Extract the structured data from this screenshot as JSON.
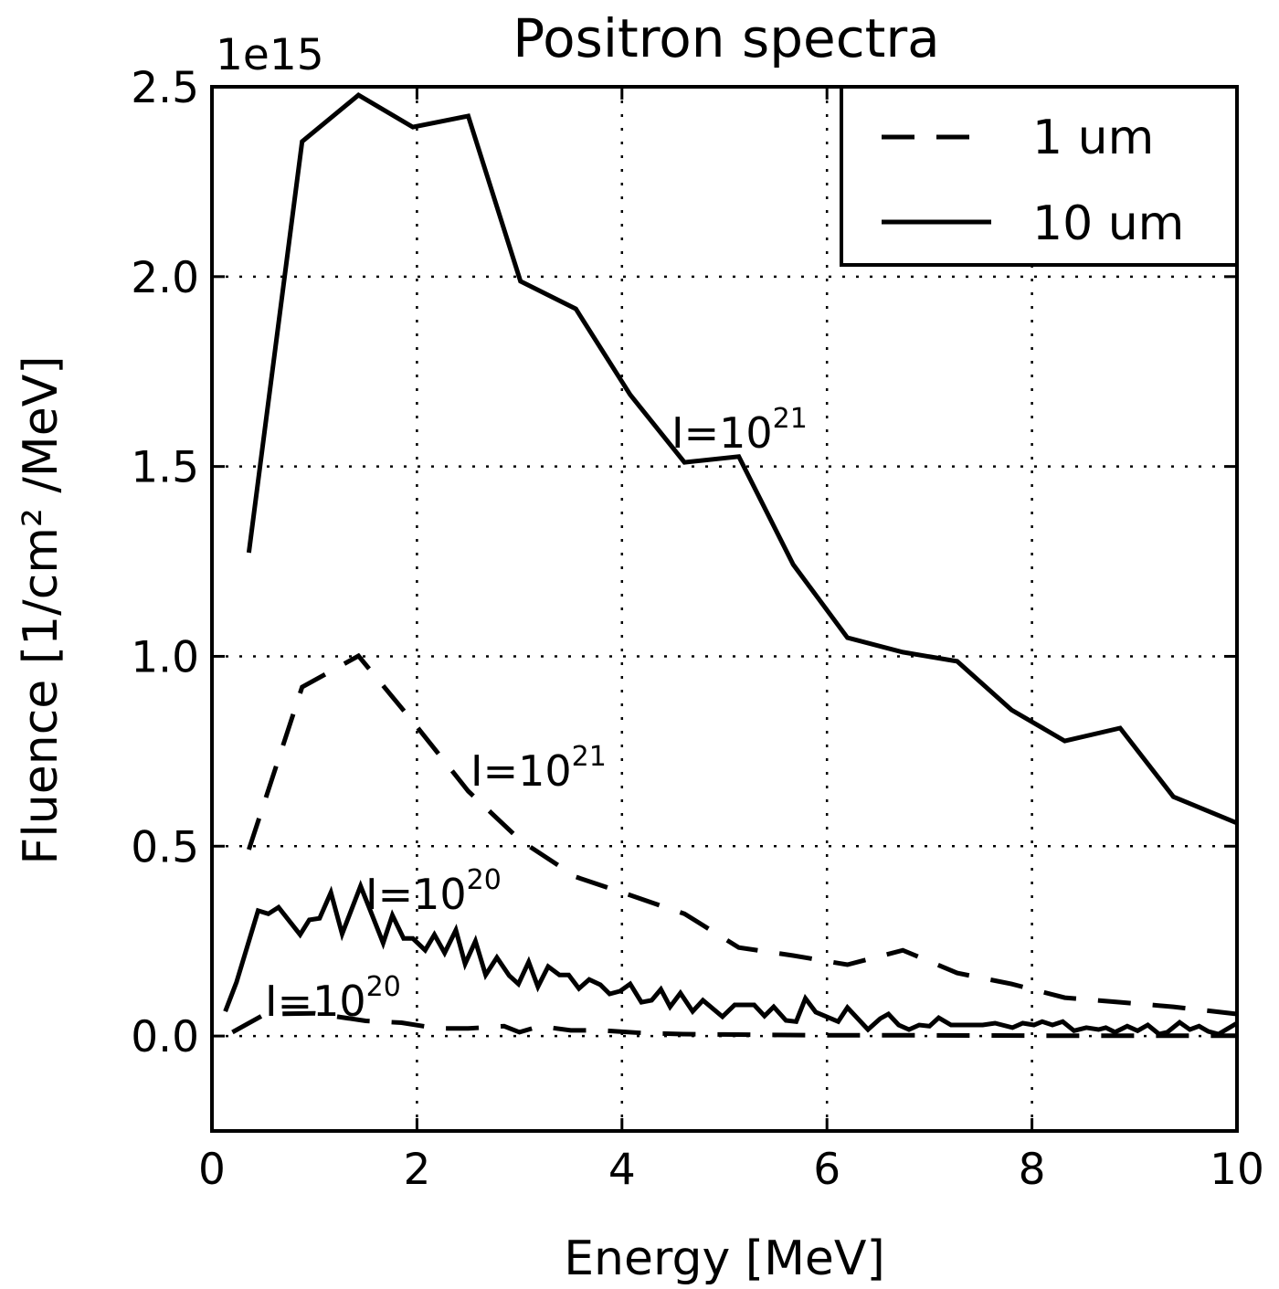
{
  "chart_data": {
    "type": "line",
    "title": "Positron spectra",
    "xlabel": "Energy [MeV]",
    "ylabel": "Fluence [1/cm² /MeV]",
    "y_scale_label": "1e15",
    "y_scale_factor": 1000000000000000.0,
    "xlim": [
      0,
      10
    ],
    "ylim": [
      -0.25,
      2.5
    ],
    "xticks": [
      "0",
      "2",
      "4",
      "6",
      "8",
      "10"
    ],
    "yticks": [
      "0.0",
      "0.5",
      "1.0",
      "1.5",
      "2.0",
      "2.5"
    ],
    "grid": true,
    "legend_position": "top-right",
    "legend": [
      {
        "label": "1 um",
        "style": "dashed"
      },
      {
        "label": "10 um",
        "style": "solid"
      }
    ],
    "series": [
      {
        "style": "solid",
        "annotation": {
          "base": "I=10",
          "exp": "21"
        },
        "x": [
          0.36,
          0.88,
          1.43,
          1.96,
          2.5,
          3.01,
          3.55,
          4.08,
          4.61,
          5.14,
          5.67,
          6.2,
          6.74,
          7.27,
          7.8,
          8.32,
          8.86,
          9.38,
          10.0
        ],
        "y": [
          1.273,
          2.356,
          2.478,
          2.394,
          2.423,
          1.988,
          1.915,
          1.689,
          1.511,
          1.526,
          1.242,
          1.049,
          1.011,
          0.987,
          0.859,
          0.777,
          0.811,
          0.63,
          0.561
        ]
      },
      {
        "style": "dashed",
        "annotation": {
          "base": "I=10",
          "exp": "21"
        },
        "x": [
          0.36,
          0.88,
          1.43,
          1.96,
          2.5,
          3.01,
          3.55,
          4.08,
          4.61,
          5.14,
          5.67,
          6.2,
          6.74,
          7.27,
          7.8,
          8.32,
          8.86,
          9.38,
          10.0
        ],
        "y": [
          0.491,
          0.919,
          1.001,
          0.828,
          0.645,
          0.515,
          0.419,
          0.371,
          0.322,
          0.233,
          0.212,
          0.188,
          0.226,
          0.166,
          0.137,
          0.101,
          0.089,
          0.077,
          0.058
        ]
      },
      {
        "style": "solid",
        "annotation": {
          "base": "I=10",
          "exp": "20"
        },
        "x": [
          0.13,
          0.24,
          0.45,
          0.55,
          0.65,
          0.86,
          0.95,
          1.05,
          1.16,
          1.27,
          1.45,
          1.54,
          1.67,
          1.76,
          1.87,
          1.96,
          2.08,
          2.17,
          2.27,
          2.38,
          2.47,
          2.57,
          2.67,
          2.78,
          2.9,
          2.99,
          3.09,
          3.18,
          3.28,
          3.39,
          3.48,
          3.58,
          3.68,
          3.79,
          3.88,
          3.98,
          4.08,
          4.19,
          4.29,
          4.38,
          4.47,
          4.57,
          4.69,
          4.79,
          4.98,
          5.1,
          5.29,
          5.39,
          5.48,
          5.6,
          5.7,
          5.79,
          5.89,
          6.11,
          6.2,
          6.4,
          6.52,
          6.6,
          6.7,
          6.8,
          6.9,
          7.0,
          7.09,
          7.21,
          7.52,
          7.64,
          7.81,
          7.91,
          8.02,
          8.1,
          8.2,
          8.3,
          8.41,
          8.53,
          8.65,
          8.72,
          8.81,
          8.93,
          9.03,
          9.13,
          9.24,
          9.32,
          9.44,
          9.54,
          9.63,
          9.72,
          9.82,
          10.0
        ],
        "y": [
          0.065,
          0.142,
          0.33,
          0.322,
          0.339,
          0.267,
          0.306,
          0.31,
          0.378,
          0.269,
          0.395,
          0.334,
          0.245,
          0.318,
          0.257,
          0.257,
          0.226,
          0.267,
          0.219,
          0.279,
          0.19,
          0.25,
          0.161,
          0.207,
          0.159,
          0.137,
          0.195,
          0.13,
          0.183,
          0.161,
          0.161,
          0.125,
          0.149,
          0.135,
          0.111,
          0.118,
          0.137,
          0.089,
          0.094,
          0.123,
          0.077,
          0.113,
          0.065,
          0.094,
          0.051,
          0.082,
          0.082,
          0.053,
          0.077,
          0.041,
          0.038,
          0.099,
          0.063,
          0.038,
          0.075,
          0.017,
          0.046,
          0.058,
          0.029,
          0.017,
          0.029,
          0.026,
          0.048,
          0.029,
          0.029,
          0.034,
          0.022,
          0.034,
          0.029,
          0.038,
          0.029,
          0.038,
          0.014,
          0.022,
          0.017,
          0.022,
          0.01,
          0.026,
          0.014,
          0.029,
          0.005,
          0.01,
          0.036,
          0.017,
          0.026,
          0.012,
          0.005,
          0.034
        ]
      },
      {
        "style": "dashed",
        "annotation": {
          "base": "I=10",
          "exp": "20"
        },
        "x": [
          0.2,
          0.52,
          1.0,
          1.5,
          1.85,
          2.2,
          2.5,
          2.85,
          3.0,
          3.2,
          3.5,
          3.8,
          4.2,
          4.6,
          5.0,
          6.0,
          7.0,
          8.0,
          9.0,
          10.0
        ],
        "y": [
          0.01,
          0.058,
          0.06,
          0.04,
          0.035,
          0.02,
          0.02,
          0.026,
          0.01,
          0.026,
          0.015,
          0.015,
          0.008,
          0.005,
          0.004,
          0.002,
          0.002,
          0.001,
          0.001,
          0.001
        ]
      }
    ]
  }
}
